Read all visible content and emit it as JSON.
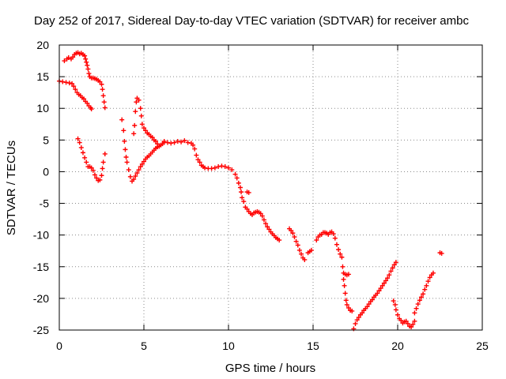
{
  "chart_data": {
    "type": "scatter",
    "title": "Day 252 of 2017, Sidereal Day-to-day VTEC variation (SDTVAR) for receiver ambc",
    "xlabel": "GPS time / hours",
    "ylabel": "SDTVAR / TECUs",
    "xlim": [
      0,
      25
    ],
    "ylim": [
      -25,
      20
    ],
    "xticks": [
      "0",
      "5",
      "10",
      "15",
      "20",
      "25"
    ],
    "yticks": [
      "20",
      "15",
      "10",
      "5",
      "0",
      "-5",
      "-10",
      "-15",
      "-20",
      "-25"
    ],
    "grid": true,
    "marker": "plus",
    "color": "#ff0000",
    "series": [
      {
        "name": "SDTVAR",
        "segments": [
          [
            [
              0.0,
              14.3
            ],
            [
              0.2,
              14.2
            ],
            [
              0.4,
              14.1
            ],
            [
              0.6,
              14.0
            ],
            [
              0.75,
              13.9
            ],
            [
              0.85,
              13.5
            ],
            [
              0.95,
              13.0
            ],
            [
              1.05,
              12.5
            ],
            [
              1.15,
              12.2
            ],
            [
              1.25,
              12.0
            ],
            [
              1.35,
              11.7
            ],
            [
              1.45,
              11.5
            ],
            [
              1.55,
              11.1
            ],
            [
              1.65,
              10.8
            ],
            [
              1.75,
              10.4
            ],
            [
              1.85,
              10.1
            ],
            [
              1.9,
              9.9
            ]
          ],
          [
            [
              0.3,
              17.5
            ],
            [
              0.45,
              17.8
            ],
            [
              0.55,
              18.0
            ],
            [
              0.7,
              17.8
            ],
            [
              0.8,
              18.1
            ],
            [
              0.9,
              18.5
            ],
            [
              1.0,
              18.7
            ],
            [
              1.1,
              18.8
            ],
            [
              1.2,
              18.6
            ],
            [
              1.3,
              18.7
            ],
            [
              1.4,
              18.5
            ],
            [
              1.5,
              18.3
            ],
            [
              1.55,
              17.8
            ],
            [
              1.6,
              17.3
            ],
            [
              1.65,
              16.8
            ],
            [
              1.7,
              16.2
            ],
            [
              1.75,
              15.5
            ],
            [
              1.8,
              15.0
            ],
            [
              1.9,
              14.8
            ],
            [
              2.0,
              14.8
            ],
            [
              2.1,
              14.7
            ],
            [
              2.2,
              14.6
            ],
            [
              2.3,
              14.4
            ],
            [
              2.4,
              14.2
            ],
            [
              2.5,
              13.8
            ],
            [
              2.55,
              13.0
            ],
            [
              2.6,
              12.0
            ],
            [
              2.65,
              11.0
            ],
            [
              2.7,
              10.1
            ]
          ],
          [
            [
              1.1,
              5.2
            ],
            [
              1.2,
              4.6
            ],
            [
              1.3,
              3.8
            ],
            [
              1.4,
              3.0
            ],
            [
              1.5,
              2.2
            ],
            [
              1.6,
              1.5
            ],
            [
              1.7,
              0.8
            ],
            [
              1.8,
              0.8
            ],
            [
              1.9,
              0.6
            ],
            [
              2.0,
              0.2
            ],
            [
              2.1,
              -0.5
            ],
            [
              2.2,
              -1.0
            ],
            [
              2.3,
              -1.4
            ],
            [
              2.4,
              -1.3
            ],
            [
              2.5,
              -0.6
            ],
            [
              2.55,
              0.5
            ],
            [
              2.6,
              1.5
            ],
            [
              2.7,
              2.8
            ]
          ],
          [
            [
              3.7,
              8.2
            ],
            [
              3.8,
              6.5
            ],
            [
              3.85,
              4.8
            ],
            [
              3.9,
              3.5
            ],
            [
              3.95,
              2.3
            ],
            [
              4.0,
              1.5
            ],
            [
              4.1,
              0.3
            ],
            [
              4.2,
              -0.8
            ],
            [
              4.3,
              -1.5
            ],
            [
              4.4,
              -1.2
            ],
            [
              4.5,
              -0.7
            ],
            [
              4.6,
              -0.2
            ],
            [
              4.7,
              0.3
            ],
            [
              4.8,
              0.8
            ],
            [
              4.9,
              1.2
            ],
            [
              5.0,
              1.6
            ],
            [
              5.1,
              2.0
            ],
            [
              5.2,
              2.3
            ],
            [
              5.3,
              2.5
            ],
            [
              5.4,
              2.8
            ],
            [
              5.5,
              3.1
            ],
            [
              5.6,
              3.4
            ],
            [
              5.7,
              3.7
            ],
            [
              5.8,
              3.9
            ],
            [
              5.9,
              4.0
            ],
            [
              6.0,
              4.2
            ],
            [
              6.1,
              4.4
            ],
            [
              6.2,
              4.6
            ]
          ],
          [
            [
              4.4,
              6.0
            ],
            [
              4.45,
              7.3
            ],
            [
              4.5,
              9.5
            ],
            [
              4.55,
              11.0
            ],
            [
              4.6,
              11.6
            ],
            [
              4.7,
              11.3
            ],
            [
              4.8,
              10.0
            ],
            [
              4.85,
              8.8
            ],
            [
              4.9,
              7.5
            ],
            [
              5.0,
              6.9
            ],
            [
              5.1,
              6.5
            ],
            [
              5.2,
              6.1
            ],
            [
              5.3,
              5.9
            ],
            [
              5.4,
              5.6
            ],
            [
              5.5,
              5.4
            ],
            [
              5.6,
              5.0
            ],
            [
              5.7,
              4.8
            ],
            [
              5.8,
              4.4
            ]
          ],
          [
            [
              6.2,
              4.8
            ],
            [
              6.4,
              4.6
            ],
            [
              6.6,
              4.5
            ],
            [
              6.8,
              4.6
            ],
            [
              7.0,
              4.8
            ],
            [
              7.2,
              4.7
            ],
            [
              7.4,
              4.9
            ],
            [
              7.6,
              4.6
            ],
            [
              7.8,
              4.5
            ],
            [
              7.9,
              4.2
            ],
            [
              8.0,
              3.6
            ],
            [
              8.1,
              2.6
            ],
            [
              8.2,
              1.9
            ],
            [
              8.3,
              1.5
            ],
            [
              8.4,
              1.0
            ],
            [
              8.5,
              0.8
            ],
            [
              8.6,
              0.6
            ],
            [
              8.8,
              0.5
            ],
            [
              9.0,
              0.5
            ],
            [
              9.2,
              0.6
            ],
            [
              9.4,
              0.8
            ],
            [
              9.6,
              0.9
            ],
            [
              9.8,
              0.8
            ],
            [
              10.0,
              0.6
            ],
            [
              10.2,
              0.3
            ],
            [
              10.4,
              -0.4
            ],
            [
              10.5,
              -1.0
            ],
            [
              10.6,
              -1.8
            ],
            [
              10.7,
              -2.5
            ],
            [
              10.75,
              -3.2
            ],
            [
              10.8,
              -4.1
            ],
            [
              10.9,
              -4.7
            ]
          ],
          [
            [
              11.1,
              -3.2
            ],
            [
              11.2,
              -3.3
            ]
          ],
          [
            [
              11.0,
              -5.6
            ],
            [
              11.1,
              -5.9
            ],
            [
              11.2,
              -6.3
            ],
            [
              11.3,
              -6.6
            ],
            [
              11.4,
              -6.8
            ],
            [
              11.5,
              -6.5
            ],
            [
              11.6,
              -6.4
            ],
            [
              11.7,
              -6.3
            ],
            [
              11.8,
              -6.4
            ],
            [
              11.9,
              -6.6
            ],
            [
              12.0,
              -7.0
            ],
            [
              12.1,
              -7.6
            ],
            [
              12.2,
              -8.2
            ],
            [
              12.3,
              -8.7
            ],
            [
              12.4,
              -9.1
            ],
            [
              12.5,
              -9.5
            ],
            [
              12.6,
              -9.8
            ],
            [
              12.7,
              -10.1
            ],
            [
              12.8,
              -10.4
            ],
            [
              12.9,
              -10.6
            ],
            [
              13.0,
              -10.8
            ]
          ],
          [
            [
              13.6,
              -9.0
            ],
            [
              13.7,
              -9.3
            ],
            [
              13.8,
              -9.7
            ],
            [
              13.9,
              -10.3
            ],
            [
              14.0,
              -11.0
            ],
            [
              14.1,
              -11.6
            ],
            [
              14.2,
              -12.4
            ],
            [
              14.3,
              -13.0
            ],
            [
              14.4,
              -13.6
            ],
            [
              14.5,
              -13.9
            ]
          ],
          [
            [
              14.7,
              -12.8
            ],
            [
              14.8,
              -12.6
            ],
            [
              14.9,
              -12.4
            ]
          ],
          [
            [
              15.2,
              -10.8
            ],
            [
              15.3,
              -10.3
            ],
            [
              15.4,
              -10.0
            ],
            [
              15.5,
              -9.9
            ],
            [
              15.6,
              -9.6
            ],
            [
              15.7,
              -9.6
            ],
            [
              15.8,
              -9.7
            ],
            [
              15.9,
              -9.9
            ],
            [
              16.0,
              -9.6
            ],
            [
              16.1,
              -9.5
            ],
            [
              16.2,
              -9.8
            ],
            [
              16.3,
              -10.5
            ],
            [
              16.4,
              -11.5
            ],
            [
              16.5,
              -12.3
            ],
            [
              16.6,
              -13.0
            ],
            [
              16.7,
              -13.5
            ],
            [
              16.75,
              -15.0
            ],
            [
              16.8,
              -16.0
            ],
            [
              16.9,
              -16.2
            ],
            [
              17.0,
              -16.3
            ],
            [
              17.1,
              -16.2
            ]
          ],
          [
            [
              16.8,
              -17.0
            ],
            [
              16.85,
              -18.0
            ],
            [
              16.9,
              -19.2
            ],
            [
              16.95,
              -20.3
            ],
            [
              17.0,
              -21.0
            ],
            [
              17.1,
              -21.5
            ],
            [
              17.2,
              -21.9
            ],
            [
              17.3,
              -22.0
            ]
          ],
          [
            [
              17.4,
              -24.8
            ],
            [
              17.5,
              -24.0
            ],
            [
              17.6,
              -23.4
            ],
            [
              17.7,
              -23.0
            ],
            [
              17.8,
              -22.6
            ],
            [
              17.9,
              -22.3
            ],
            [
              18.0,
              -21.9
            ],
            [
              18.1,
              -21.6
            ],
            [
              18.2,
              -21.3
            ],
            [
              18.3,
              -20.9
            ],
            [
              18.4,
              -20.5
            ],
            [
              18.5,
              -20.2
            ],
            [
              18.6,
              -19.8
            ],
            [
              18.7,
              -19.5
            ],
            [
              18.8,
              -19.2
            ],
            [
              18.9,
              -18.8
            ],
            [
              19.0,
              -18.4
            ],
            [
              19.1,
              -18.0
            ],
            [
              19.2,
              -17.6
            ],
            [
              19.3,
              -17.2
            ],
            [
              19.4,
              -16.8
            ],
            [
              19.5,
              -16.3
            ],
            [
              19.6,
              -15.7
            ],
            [
              19.7,
              -15.2
            ],
            [
              19.8,
              -14.7
            ],
            [
              19.9,
              -14.3
            ]
          ],
          [
            [
              19.75,
              -20.4
            ],
            [
              19.85,
              -21.0
            ],
            [
              19.9,
              -21.8
            ],
            [
              20.0,
              -22.6
            ],
            [
              20.1,
              -23.2
            ],
            [
              20.2,
              -23.5
            ],
            [
              20.3,
              -23.9
            ],
            [
              20.4,
              -23.7
            ],
            [
              20.5,
              -23.6
            ],
            [
              20.6,
              -24.0
            ],
            [
              20.7,
              -24.4
            ],
            [
              20.8,
              -24.5
            ],
            [
              20.9,
              -24.1
            ],
            [
              21.0,
              -23.6
            ]
          ],
          [
            [
              21.0,
              -22.3
            ],
            [
              21.1,
              -21.6
            ],
            [
              21.2,
              -20.9
            ],
            [
              21.3,
              -20.3
            ],
            [
              21.4,
              -19.8
            ],
            [
              21.5,
              -19.3
            ],
            [
              21.6,
              -18.6
            ],
            [
              21.7,
              -18.0
            ],
            [
              21.8,
              -17.3
            ],
            [
              21.9,
              -16.7
            ],
            [
              22.0,
              -16.3
            ],
            [
              22.1,
              -16.0
            ]
          ],
          [
            [
              22.5,
              -12.8
            ],
            [
              22.6,
              -12.9
            ]
          ]
        ]
      }
    ]
  }
}
